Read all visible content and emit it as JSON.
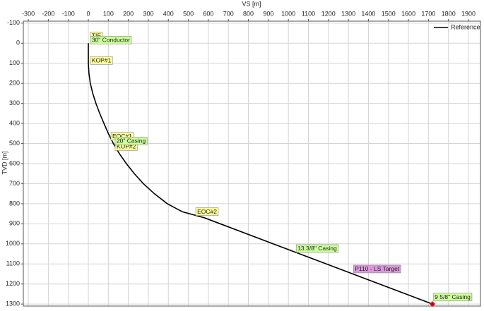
{
  "chart_data": {
    "type": "line",
    "x_label": "VS [m]",
    "y_label": "TVD [m]",
    "xlim": [
      -325,
      1960
    ],
    "ylim": [
      -110,
      1310
    ],
    "y_inverted": true,
    "grid": true,
    "legend": "top-right",
    "xticks": [
      -300,
      -200,
      -100,
      0,
      100,
      200,
      300,
      400,
      500,
      600,
      700,
      800,
      900,
      1000,
      1100,
      1200,
      1300,
      1400,
      1500,
      1600,
      1700,
      1800,
      1900
    ],
    "yticks": [
      -100,
      0,
      100,
      200,
      300,
      400,
      500,
      600,
      700,
      800,
      900,
      1000,
      1100,
      1200,
      1300
    ],
    "series": [
      {
        "name": "Reference",
        "color": "#000000",
        "x": [
          0,
          0,
          3,
          10,
          22,
          38,
          57,
          78,
          100,
          125,
          155,
          190,
          230,
          275,
          330,
          395,
          470,
          580,
          1720
        ],
        "values": [
          0,
          100,
          150,
          200,
          250,
          300,
          350,
          400,
          450,
          500,
          550,
          600,
          650,
          700,
          750,
          800,
          840,
          870,
          1300
        ]
      }
    ],
    "marker": {
      "x": 1720,
      "y": 1300,
      "color": "#e00000"
    },
    "annotations": [
      {
        "text": "TIE",
        "x": 10,
        "y": -56,
        "color": "#ffff99"
      },
      {
        "text": "30\" Conductor",
        "x": 10,
        "y": -35,
        "color": "#ccff99"
      },
      {
        "text": "KOP#1",
        "x": 10,
        "y": 67,
        "color": "#ffff99"
      },
      {
        "text": "EOC#1",
        "x": 113,
        "y": 444,
        "color": "#ffff99"
      },
      {
        "text": "KOP#2",
        "x": 134,
        "y": 496,
        "color": "#ffff99"
      },
      {
        "text": "20\" Casing",
        "x": 134,
        "y": 468,
        "color": "#ccff99"
      },
      {
        "text": "EOC#2",
        "x": 537,
        "y": 820,
        "color": "#ffff99"
      },
      {
        "text": "13 3/8\" Casing",
        "x": 1039,
        "y": 1004,
        "color": "#ccff99"
      },
      {
        "text": "P110 - LS Target",
        "x": 1325,
        "y": 1106,
        "color": "#dd99dd"
      },
      {
        "text": "9 5/8\" Casing",
        "x": 1724,
        "y": 1246,
        "color": "#ccff99"
      }
    ]
  }
}
